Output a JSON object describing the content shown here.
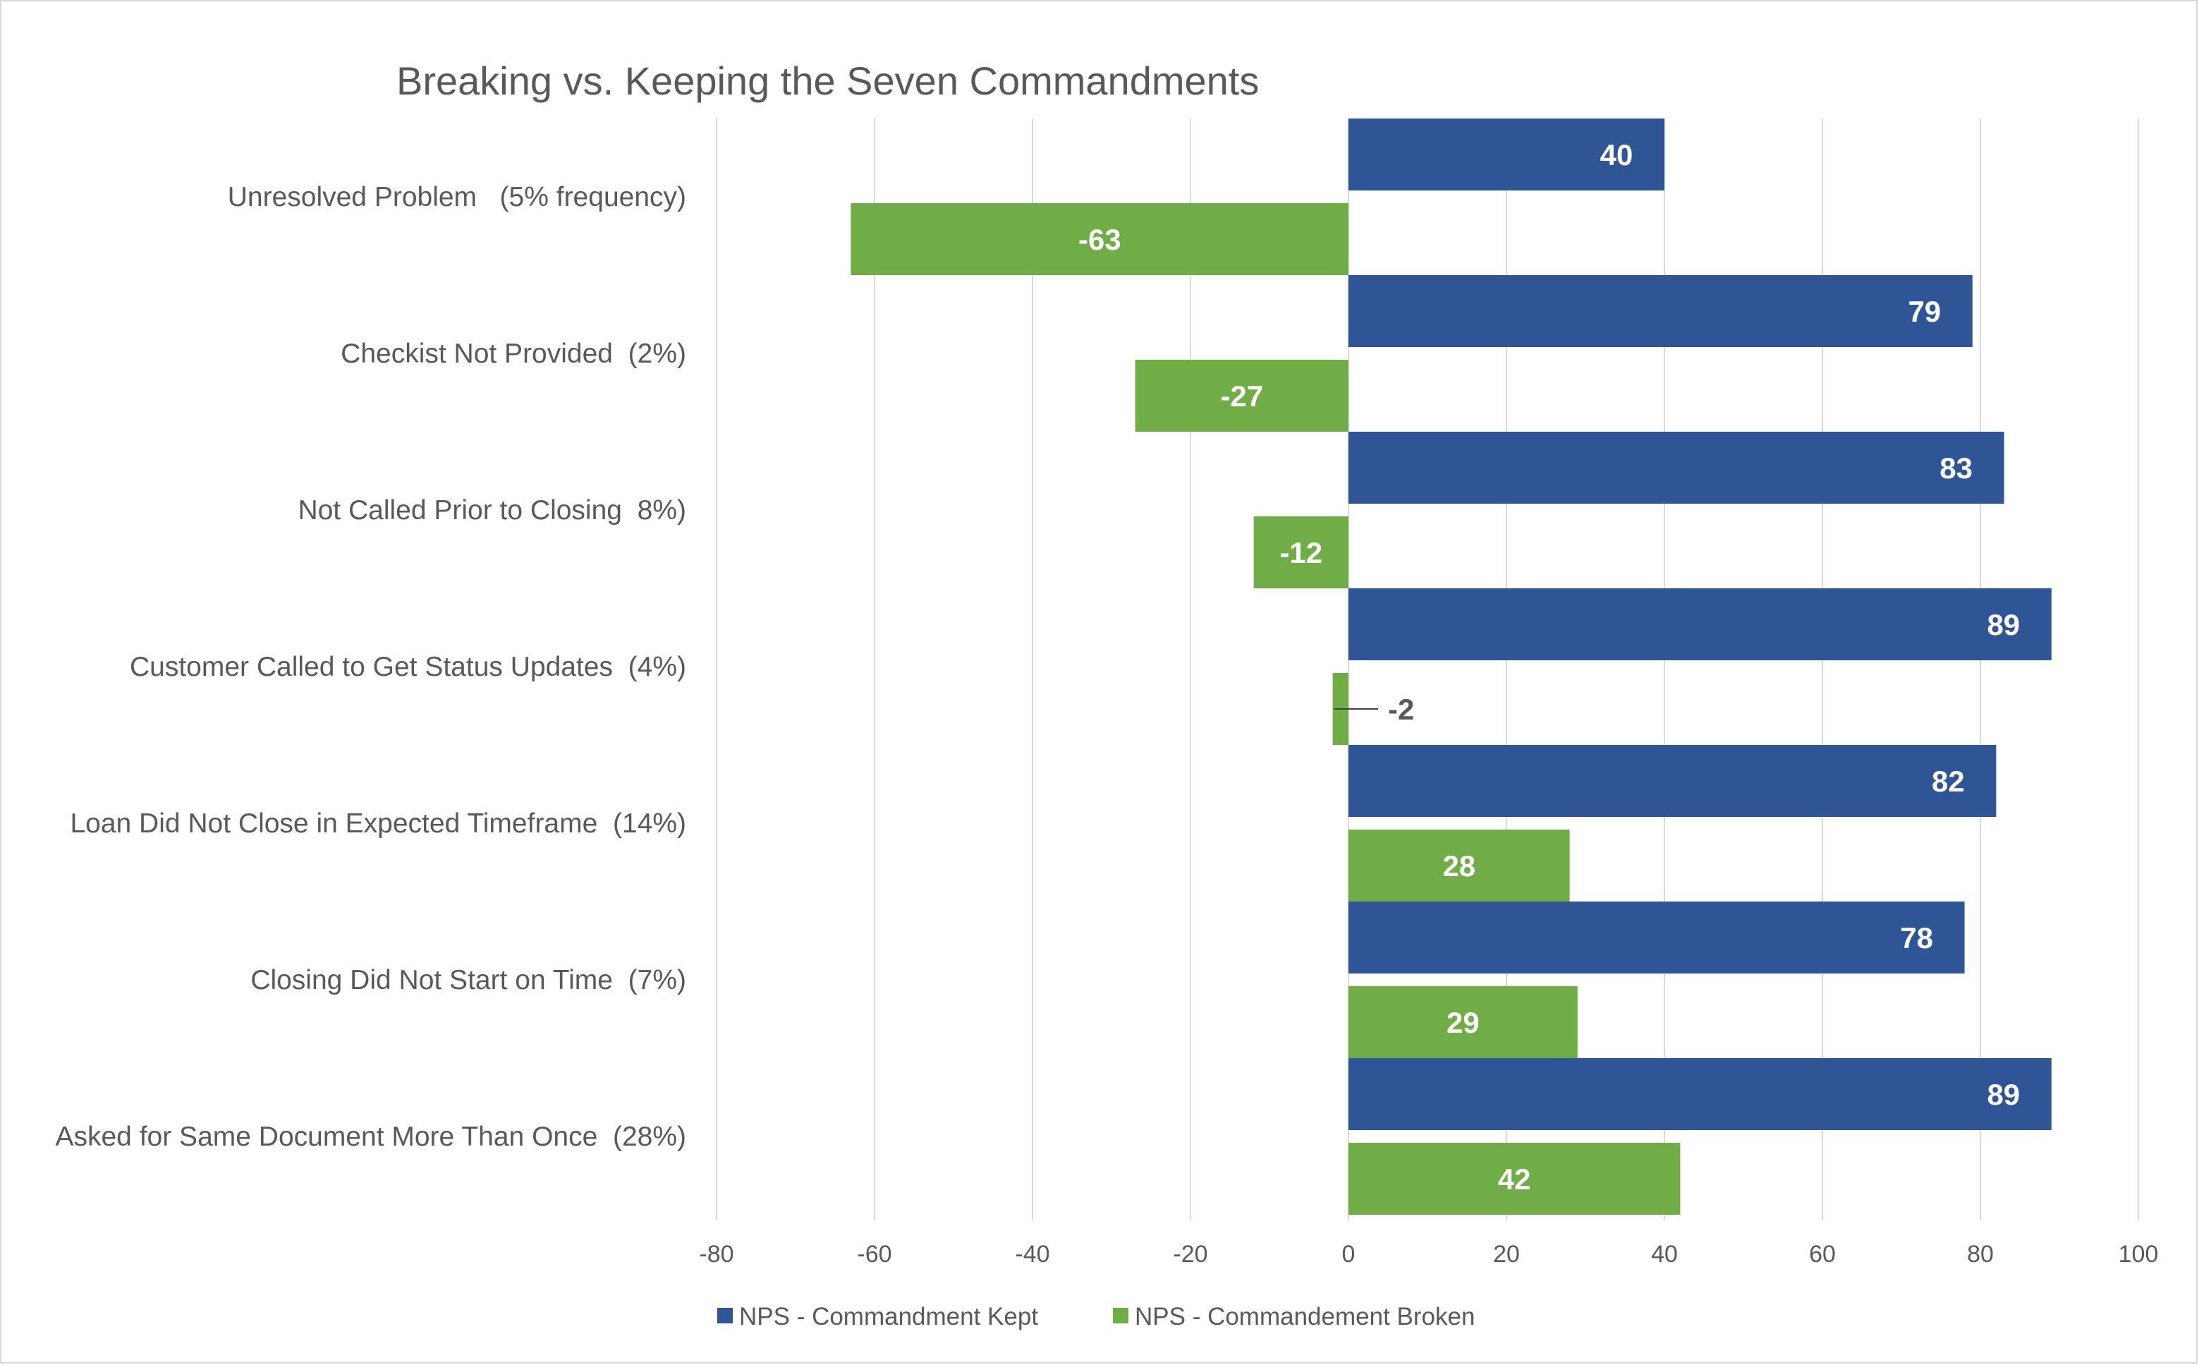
{
  "chart_data": {
    "type": "bar",
    "orientation": "horizontal",
    "title": "Breaking vs. Keeping the Seven Commandments",
    "categories": [
      "Unresolved Problem   (5% frequency)",
      "Checkist Not Provided  (2%)",
      "Not Called Prior to Closing  8%)",
      "Customer Called to Get Status Updates  (4%)",
      "Loan Did Not Close in Expected Timeframe  (14%)",
      "Closing Did Not Start on Time  (7%)",
      "Asked for Same Document More Than Once  (28%)"
    ],
    "series": [
      {
        "name": "NPS - Commandment Kept",
        "color": "#2f5597",
        "values": [
          40,
          79,
          83,
          89,
          82,
          78,
          89
        ]
      },
      {
        "name": "NPS - Commandement Broken",
        "color": "#70ad47",
        "values": [
          -63,
          -27,
          -12,
          -2,
          28,
          29,
          42
        ]
      }
    ],
    "xlim": [
      -80,
      100
    ],
    "xticks": [
      "-80",
      "-60",
      "-40",
      "-20",
      "0",
      "20",
      "40",
      "60",
      "80",
      "100"
    ],
    "grid": true,
    "legend": "bottom",
    "data_labels": true
  }
}
